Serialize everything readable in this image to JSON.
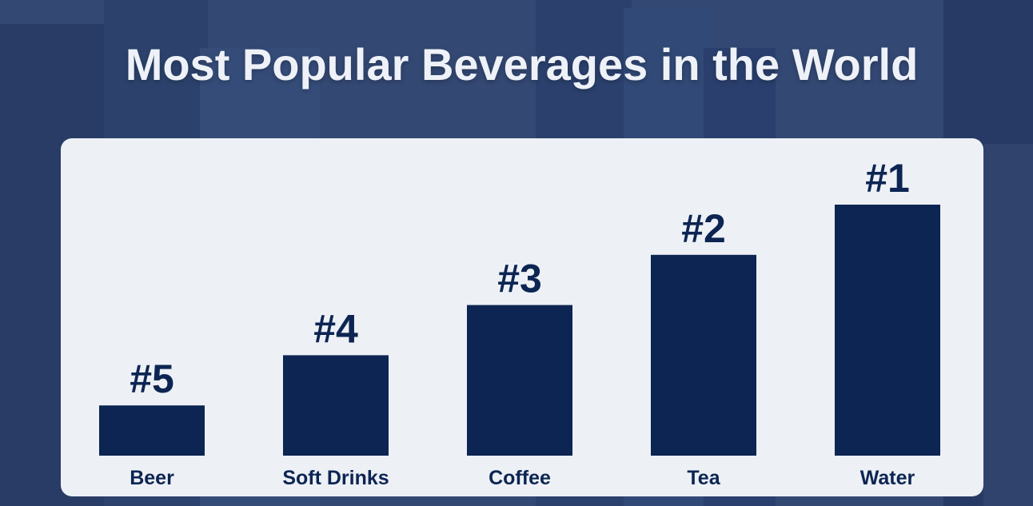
{
  "colors": {
    "sky": "#3a4f78",
    "building": "#2a3c62",
    "building_light": "#4a5f88",
    "panel": "#edf0f5",
    "bar": "#0c2552",
    "text_dark": "#0c2552",
    "title": "#eef2f8"
  },
  "chart_data": {
    "type": "bar",
    "title": "Most Popular Beverages in the World",
    "categories": [
      "Beer",
      "Soft Drinks",
      "Coffee",
      "Tea",
      "Water"
    ],
    "values": [
      1,
      2,
      3,
      4,
      5
    ],
    "data_labels": [
      "#5",
      "#4",
      "#3",
      "#2",
      "#1"
    ],
    "xlabel": "",
    "ylabel": "",
    "ylim": [
      0,
      5
    ],
    "grid": false,
    "legend": "none"
  }
}
